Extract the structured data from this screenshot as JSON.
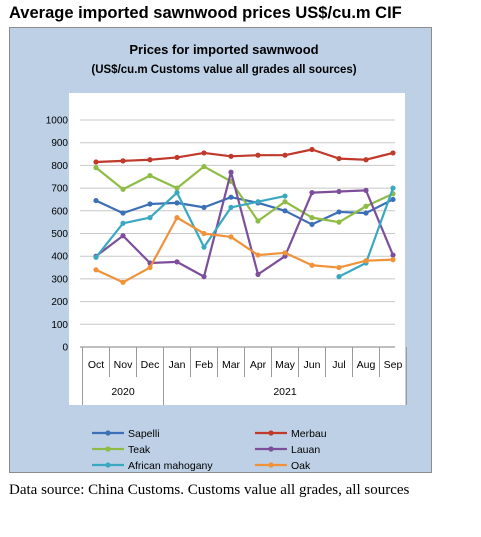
{
  "page_title": "Average imported sawnwood prices US$/cu.m CIF",
  "caption": "Data source: China Customs. Customs value all grades, all sources",
  "colors": {
    "panel_background": "#bdd0e6",
    "plot_background": "#ffffff",
    "Sapelli": "#3b6fb6",
    "Merbau": "#c0392b",
    "Teak": "#8fbc45",
    "Lauan": "#7d4f9b",
    "African mahogany": "#3aa8c1",
    "Oak": "#f0923a"
  },
  "chart_data": {
    "type": "line",
    "title": "Prices for imported sawnwood",
    "subtitle": "(US$/cu.m Customs value all grades all sources)",
    "categories": [
      "Oct",
      "Nov",
      "Dec",
      "Jan",
      "Feb",
      "Mar",
      "Apr",
      "May",
      "Jun",
      "Jul",
      "Aug",
      "Sep"
    ],
    "year_groups": [
      {
        "label": "2020",
        "start": 0,
        "end": 2
      },
      {
        "label": "2021",
        "start": 3,
        "end": 11
      }
    ],
    "ylim": [
      0,
      1000
    ],
    "yticks": [
      "0",
      "100",
      "200",
      "300",
      "400",
      "500",
      "600",
      "700",
      "800",
      "900",
      "1000"
    ],
    "grid": true,
    "legend_position": "bottom",
    "series": [
      {
        "name": "Sapelli",
        "values": [
          645,
          590,
          630,
          635,
          615,
          660,
          635,
          600,
          540,
          595,
          590,
          650
        ]
      },
      {
        "name": "Merbau",
        "values": [
          815,
          820,
          825,
          835,
          855,
          840,
          845,
          845,
          870,
          830,
          825,
          855
        ]
      },
      {
        "name": "Teak",
        "values": [
          790,
          695,
          755,
          700,
          795,
          730,
          555,
          640,
          570,
          550,
          620,
          675
        ]
      },
      {
        "name": "Lauan",
        "values": [
          400,
          490,
          370,
          375,
          310,
          770,
          320,
          400,
          680,
          685,
          690,
          405
        ]
      },
      {
        "name": "African mahogany",
        "values": [
          395,
          545,
          570,
          680,
          440,
          615,
          640,
          665,
          null,
          310,
          370,
          700
        ]
      },
      {
        "name": "Oak",
        "values": [
          340,
          285,
          350,
          570,
          500,
          485,
          405,
          415,
          360,
          350,
          380,
          385
        ]
      }
    ]
  }
}
